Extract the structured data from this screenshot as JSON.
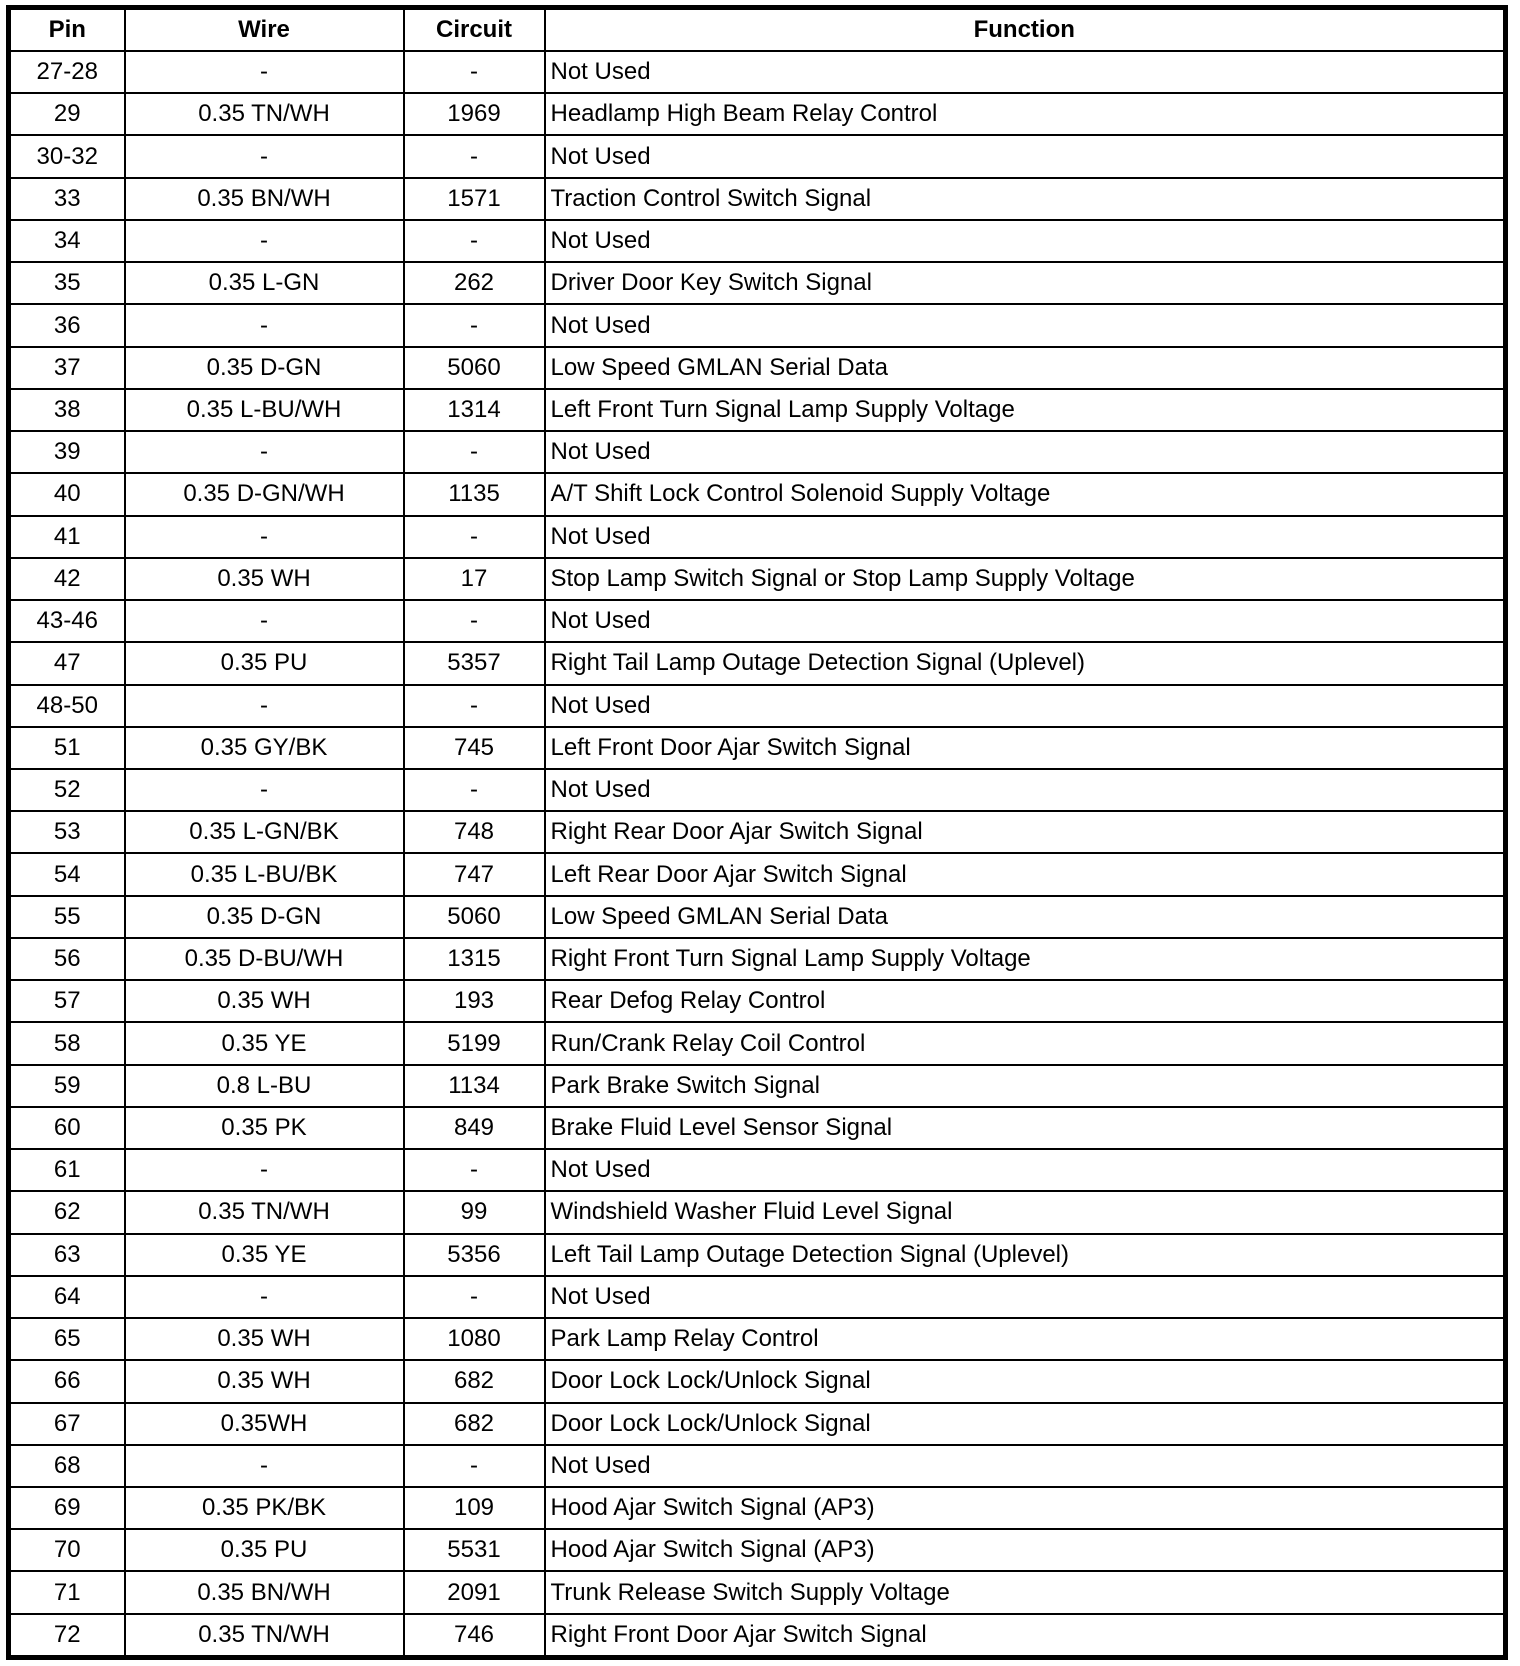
{
  "headers": {
    "pin": "Pin",
    "wire": "Wire",
    "circuit": "Circuit",
    "function": "Function"
  },
  "rows": [
    [
      "27-28",
      "-",
      "-",
      "Not Used"
    ],
    [
      "29",
      "0.35 TN/WH",
      "1969",
      "Headlamp High Beam Relay Control"
    ],
    [
      "30-32",
      "-",
      "-",
      "Not Used"
    ],
    [
      "33",
      "0.35 BN/WH",
      "1571",
      "Traction Control Switch Signal"
    ],
    [
      "34",
      "-",
      "-",
      "Not Used"
    ],
    [
      "35",
      "0.35 L-GN",
      "262",
      "Driver Door Key Switch Signal"
    ],
    [
      "36",
      "-",
      "-",
      "Not Used"
    ],
    [
      "37",
      "0.35 D-GN",
      "5060",
      "Low Speed GMLAN Serial Data"
    ],
    [
      "38",
      "0.35 L-BU/WH",
      "1314",
      "Left Front Turn Signal Lamp Supply Voltage"
    ],
    [
      "39",
      "-",
      "-",
      "Not Used"
    ],
    [
      "40",
      "0.35 D-GN/WH",
      "1135",
      "A/T Shift Lock Control Solenoid Supply Voltage"
    ],
    [
      "41",
      "-",
      "-",
      "Not Used"
    ],
    [
      "42",
      "0.35 WH",
      "17",
      "Stop Lamp Switch Signal or Stop Lamp Supply Voltage"
    ],
    [
      "43-46",
      "-",
      "-",
      "Not Used"
    ],
    [
      "47",
      "0.35 PU",
      "5357",
      "Right Tail Lamp Outage Detection Signal (Uplevel)"
    ],
    [
      "48-50",
      "-",
      "-",
      "Not Used"
    ],
    [
      "51",
      "0.35 GY/BK",
      "745",
      "Left Front Door Ajar Switch Signal"
    ],
    [
      "52",
      "-",
      "-",
      "Not Used"
    ],
    [
      "53",
      "0.35 L-GN/BK",
      "748",
      "Right Rear Door Ajar Switch Signal"
    ],
    [
      "54",
      "0.35 L-BU/BK",
      "747",
      "Left Rear Door Ajar Switch Signal"
    ],
    [
      "55",
      "0.35 D-GN",
      "5060",
      "Low Speed GMLAN Serial Data"
    ],
    [
      "56",
      "0.35 D-BU/WH",
      "1315",
      "Right Front Turn Signal Lamp Supply Voltage"
    ],
    [
      "57",
      "0.35 WH",
      "193",
      "Rear Defog Relay Control"
    ],
    [
      "58",
      "0.35 YE",
      "5199",
      "Run/Crank Relay Coil Control"
    ],
    [
      "59",
      "0.8 L-BU",
      "1134",
      "Park Brake Switch Signal"
    ],
    [
      "60",
      "0.35 PK",
      "849",
      "Brake Fluid Level Sensor Signal"
    ],
    [
      "61",
      "-",
      "-",
      "Not Used"
    ],
    [
      "62",
      "0.35 TN/WH",
      "99",
      "Windshield Washer Fluid Level Signal"
    ],
    [
      "63",
      "0.35 YE",
      "5356",
      "Left Tail Lamp Outage Detection Signal (Uplevel)"
    ],
    [
      "64",
      "-",
      "-",
      "Not Used"
    ],
    [
      "65",
      "0.35 WH",
      "1080",
      "Park Lamp Relay Control"
    ],
    [
      "66",
      "0.35 WH",
      "682",
      "Door Lock Lock/Unlock Signal"
    ],
    [
      "67",
      "0.35WH",
      "682",
      "Door Lock Lock/Unlock Signal"
    ],
    [
      "68",
      "-",
      "-",
      "Not Used"
    ],
    [
      "69",
      "0.35 PK/BK",
      "109",
      "Hood Ajar Switch Signal (AP3)"
    ],
    [
      "70",
      "0.35 PU",
      "5531",
      "Hood Ajar Switch Signal (AP3)"
    ],
    [
      "71",
      "0.35 BN/WH",
      "2091",
      "Trunk Release Switch Supply Voltage"
    ],
    [
      "72",
      "0.35 TN/WH",
      "746",
      "Right Front Door Ajar Switch Signal"
    ]
  ]
}
